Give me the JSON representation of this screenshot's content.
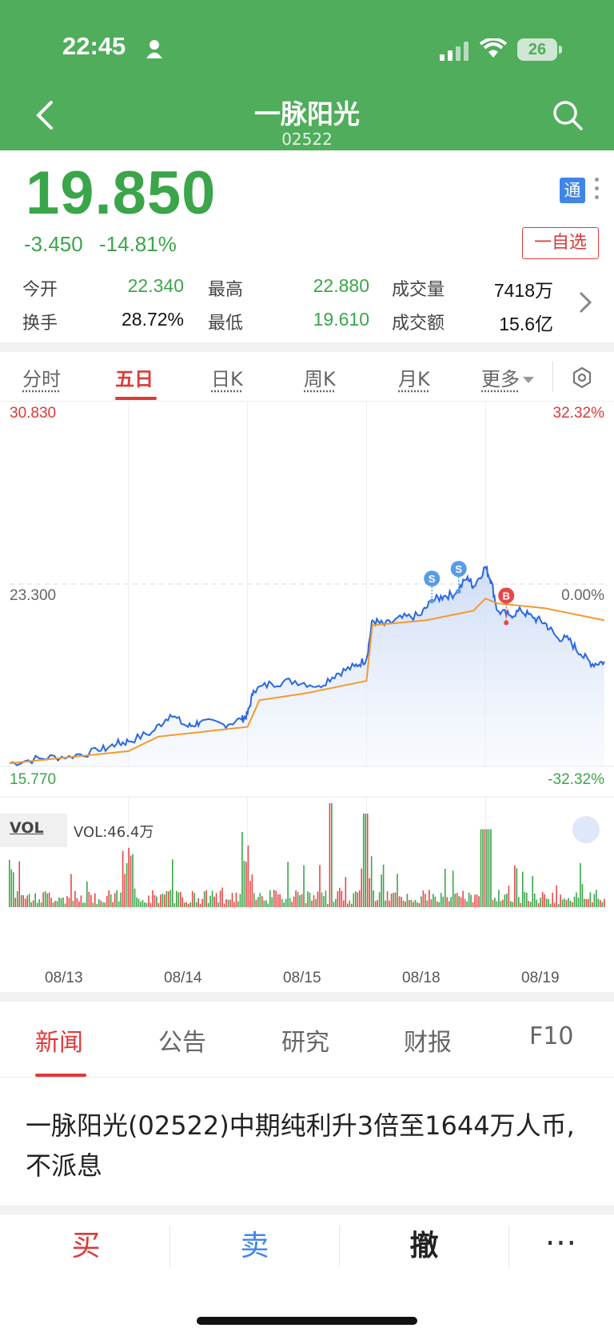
{
  "status": {
    "time": "22:45",
    "battery": "26"
  },
  "header": {
    "title": "一脉阳光",
    "code": "02522"
  },
  "quote": {
    "price": "19.850",
    "change": "-3.450",
    "change_pct": "-14.81%",
    "watch_label": "一自选",
    "tong_label": "通",
    "stats": [
      {
        "label": "今开",
        "value": "22.340",
        "color": "#3ba549"
      },
      {
        "label": "最高",
        "value": "22.880",
        "color": "#3ba549"
      },
      {
        "label": "成交量",
        "value": "7418万",
        "color": "#111111"
      },
      {
        "label": "换手",
        "value": "28.72%",
        "color": "#111111"
      },
      {
        "label": "最低",
        "value": "19.610",
        "color": "#3ba549"
      },
      {
        "label": "成交额",
        "value": "15.6亿",
        "color": "#111111"
      }
    ]
  },
  "chart_tabs": [
    "分时",
    "五日",
    "日K",
    "周K",
    "月K",
    "更多"
  ],
  "chart_tabs_active": "五日",
  "chart_labels": {
    "y_max": "30.830",
    "y_mid": "23.300",
    "y_min": "15.770",
    "pct_max": "32.32%",
    "pct_mid": "0.00%",
    "pct_min": "-32.32%",
    "vol_tag": "VOL",
    "vol_value": "VOL:46.4万",
    "markers": [
      "S",
      "S",
      "B"
    ]
  },
  "chart_data": {
    "type": "line",
    "x": [
      "08/13",
      "08/14",
      "08/15",
      "08/18",
      "08/19"
    ],
    "ylim": [
      15.77,
      30.83
    ],
    "reference_price": 23.3,
    "series": [],
    "price_path_points": [
      [
        0,
        15.9
      ],
      [
        0.05,
        16.1
      ],
      [
        0.1,
        16.2
      ],
      [
        0.15,
        16.4
      ],
      [
        0.18,
        16.7
      ],
      [
        0.2,
        16.8
      ],
      [
        0.24,
        17.2
      ],
      [
        0.27,
        17.9
      ],
      [
        0.3,
        17.4
      ],
      [
        0.32,
        17.6
      ],
      [
        0.36,
        17.5
      ],
      [
        0.39,
        17.7
      ],
      [
        0.4,
        17.9
      ],
      [
        0.41,
        18.9
      ],
      [
        0.44,
        19.2
      ],
      [
        0.48,
        19.3
      ],
      [
        0.52,
        19.1
      ],
      [
        0.55,
        19.6
      ],
      [
        0.58,
        19.9
      ],
      [
        0.6,
        20.2
      ],
      [
        0.61,
        21.8
      ],
      [
        0.63,
        21.6
      ],
      [
        0.66,
        21.9
      ],
      [
        0.69,
        22.0
      ],
      [
        0.71,
        22.6
      ],
      [
        0.73,
        22.8
      ],
      [
        0.75,
        22.9
      ],
      [
        0.77,
        23.6
      ],
      [
        0.78,
        23.2
      ],
      [
        0.8,
        24.0
      ],
      [
        0.81,
        23.4
      ],
      [
        0.82,
        22.2
      ],
      [
        0.84,
        22.0
      ],
      [
        0.86,
        22.2
      ],
      [
        0.88,
        21.9
      ],
      [
        0.9,
        21.7
      ],
      [
        0.92,
        21.1
      ],
      [
        0.94,
        21.0
      ],
      [
        0.96,
        20.4
      ],
      [
        0.98,
        20.0
      ],
      [
        1.0,
        20.1
      ]
    ],
    "avg_path_points": [
      [
        0,
        15.9
      ],
      [
        0.2,
        16.4
      ],
      [
        0.25,
        17.0
      ],
      [
        0.4,
        17.4
      ],
      [
        0.42,
        18.5
      ],
      [
        0.5,
        18.8
      ],
      [
        0.6,
        19.3
      ],
      [
        0.61,
        21.6
      ],
      [
        0.7,
        21.8
      ],
      [
        0.78,
        22.2
      ],
      [
        0.8,
        22.7
      ],
      [
        0.82,
        22.5
      ],
      [
        0.9,
        22.3
      ],
      [
        1.0,
        21.8
      ]
    ]
  },
  "news_tabs": [
    "新闻",
    "公告",
    "研究",
    "财报",
    "F10"
  ],
  "headline": "一脉阳光(02522)中期纯利升3倍至1644万人币,不派息",
  "bottom": {
    "buy": "买",
    "sell": "卖",
    "cancel": "撤",
    "more": "⋯"
  }
}
